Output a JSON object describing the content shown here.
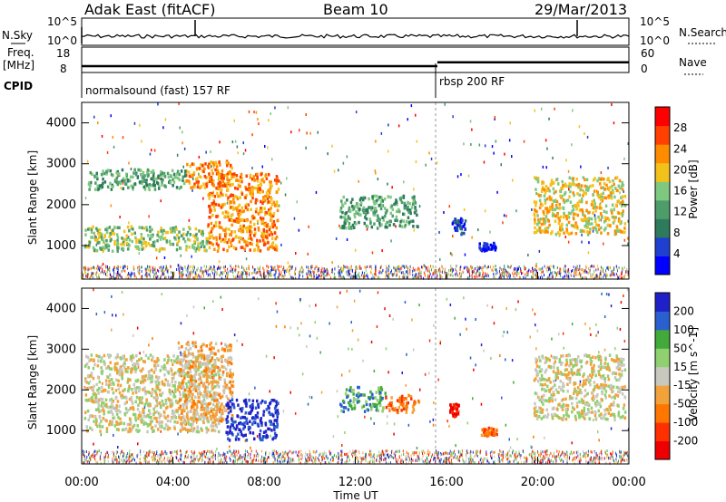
{
  "header": {
    "left_title": "Adak East (fitACF)",
    "center_title": "Beam 10",
    "date": "29/Mar/2013"
  },
  "top_panels": {
    "nsky_label": "N.Sky",
    "nsky_ticks": [
      "10^5",
      "10^0"
    ],
    "nsearch_label": "N.Search",
    "nsearch_ticks": [
      "10^5",
      "10^0"
    ],
    "freq_label": "Freq.",
    "freq_unit": "[MHz]",
    "freq_ticks": [
      "18",
      "8"
    ],
    "nave_label": "Nave",
    "nave_ticks": [
      "60",
      "0"
    ],
    "cpid_label": "CPID",
    "cpid_segments": [
      {
        "label": "normalsound (fast) 157 RF",
        "start_hour": 0,
        "end_hour": 15.6
      },
      {
        "label": "rbsp 200 RF",
        "start_hour": 15.6,
        "end_hour": 24
      }
    ],
    "freq_steps": [
      {
        "start_hour": 0,
        "end_hour": 15.6,
        "freq_mhz": 10.5
      },
      {
        "start_hour": 15.6,
        "end_hour": 24,
        "freq_mhz": 12.0
      }
    ]
  },
  "colors": {
    "power": [
      "#0000ff",
      "#1f3fd0",
      "#2e7a5c",
      "#4e9c6a",
      "#7fc87f",
      "#f2c21a",
      "#ff8c00",
      "#ff4000",
      "#ff0000"
    ],
    "velocity": [
      "#2020c8",
      "#2a5fd0",
      "#41aa3a",
      "#8fd070",
      "#c8c8be",
      "#f2a23a",
      "#ff7700",
      "#ff3000",
      "#ee0000"
    ]
  },
  "chart_data": [
    {
      "type": "heatmap",
      "name": "power",
      "ylabel": "Slant Range [km]",
      "xlabel": "",
      "xlim_hours": [
        0,
        24
      ],
      "ylim": [
        180,
        4500
      ],
      "yticks": [
        1000,
        2000,
        3000,
        4000
      ],
      "colorbar_label": "Power [dB]",
      "colorbar_ticks": [
        "4",
        "8",
        "12",
        "16",
        "20",
        "24",
        "28"
      ],
      "regions": [
        {
          "x0": 0.1,
          "x1": 5.5,
          "y0": 900,
          "y1": 1500,
          "level": 4
        },
        {
          "x0": 5.5,
          "x1": 8.6,
          "y0": 900,
          "y1": 2800,
          "level": 6
        },
        {
          "x0": 4.5,
          "x1": 6.6,
          "y0": 2450,
          "y1": 3100,
          "level": 6
        },
        {
          "x0": 0.2,
          "x1": 4.5,
          "y0": 2400,
          "y1": 2900,
          "level": 3
        },
        {
          "x0": 11.3,
          "x1": 14.7,
          "y0": 1450,
          "y1": 2250,
          "level": 3
        },
        {
          "x0": 16.2,
          "x1": 16.8,
          "y0": 1300,
          "y1": 1700,
          "level": 1
        },
        {
          "x0": 17.4,
          "x1": 18.2,
          "y0": 900,
          "y1": 1100,
          "level": 0
        },
        {
          "x0": 19.8,
          "x1": 23.8,
          "y0": 1300,
          "y1": 2700,
          "level": 5
        }
      ]
    },
    {
      "type": "heatmap",
      "name": "velocity",
      "ylabel": "Slant Range [km]",
      "xlabel": "Time UT",
      "xlim_hours": [
        0,
        24
      ],
      "ylim": [
        180,
        4500
      ],
      "yticks": [
        1000,
        2000,
        3000,
        4000
      ],
      "xticks": [
        "00:00",
        "04:00",
        "08:00",
        "12:00",
        "16:00",
        "20:00",
        "00:00"
      ],
      "colorbar_label": "Velocity [m s^-1]",
      "colorbar_ticks": [
        "200",
        "100",
        "50",
        "15",
        "-15",
        "-50",
        "-100",
        "-200"
      ],
      "regions": [
        {
          "x0": 0.1,
          "x1": 6.0,
          "y0": 1000,
          "y1": 2900,
          "level": 4
        },
        {
          "x0": 4.2,
          "x1": 6.6,
          "y0": 1200,
          "y1": 3200,
          "level": 5
        },
        {
          "x0": 6.3,
          "x1": 8.6,
          "y0": 800,
          "y1": 1800,
          "level": 0
        },
        {
          "x0": 11.3,
          "x1": 13.3,
          "y0": 1500,
          "y1": 2100,
          "level": 2
        },
        {
          "x0": 13.3,
          "x1": 14.8,
          "y0": 1450,
          "y1": 1900,
          "level": 6
        },
        {
          "x0": 16.1,
          "x1": 16.5,
          "y0": 1350,
          "y1": 1700,
          "level": 8
        },
        {
          "x0": 17.5,
          "x1": 18.2,
          "y0": 900,
          "y1": 1100,
          "level": 6
        },
        {
          "x0": 19.8,
          "x1": 23.8,
          "y0": 1300,
          "y1": 2900,
          "level": 4
        }
      ]
    }
  ]
}
